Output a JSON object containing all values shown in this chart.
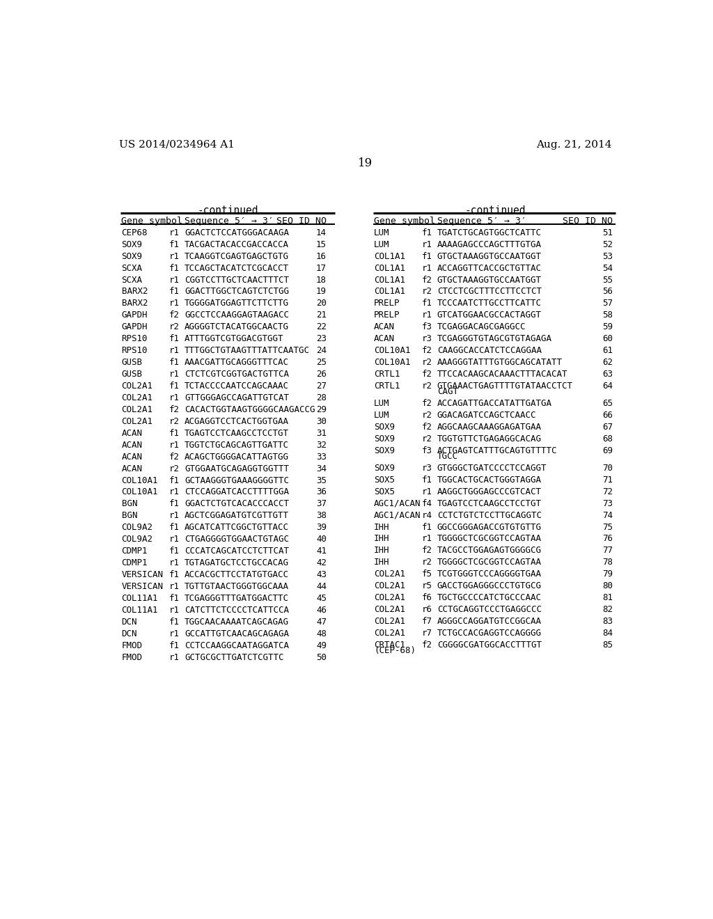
{
  "header_left": "US 2014/0234964 A1",
  "header_right": "Aug. 21, 2014",
  "page_number": "19",
  "continued_label": "-continued",
  "left_table": [
    [
      "CEP68",
      "r1",
      "GGACTCTCCATGGGACAAGA",
      "14"
    ],
    [
      "SOX9",
      "f1",
      "TACGACTACACCGACCACCA",
      "15"
    ],
    [
      "SOX9",
      "r1",
      "TCAAGGTCGAGTGAGCTGTG",
      "16"
    ],
    [
      "SCXA",
      "f1",
      "TCCAGCTACATCTCGCACCT",
      "17"
    ],
    [
      "SCXA",
      "r1",
      "CGGTCCTTGCTCAACTTTCT",
      "18"
    ],
    [
      "BARX2",
      "f1",
      "GGACTTGGCTCAGTCTCTGG",
      "19"
    ],
    [
      "BARX2",
      "r1",
      "TGGGGATGGAGTTCTTCTTG",
      "20"
    ],
    [
      "GAPDH",
      "f2",
      "GGCCTCCAAGGAGTAAGACC",
      "21"
    ],
    [
      "GAPDH",
      "r2",
      "AGGGGTCTACATGGCAACTG",
      "22"
    ],
    [
      "RPS10",
      "f1",
      "ATTTGGTCGTGGACGTGGT",
      "23"
    ],
    [
      "RPS10",
      "r1",
      "TTTGGCTGTAAGTTTATTCAATGC",
      "24"
    ],
    [
      "GUSB",
      "f1",
      "AAACGATTGCAGGGTTTCAC",
      "25"
    ],
    [
      "GUSB",
      "r1",
      "CTCTCGTCGGTGACTGTTCA",
      "26"
    ],
    [
      "COL2A1",
      "f1",
      "TCTACCCCAATCCAGCAAAC",
      "27"
    ],
    [
      "COL2A1",
      "r1",
      "GTTGGGAGCCAGATTGTCAT",
      "28"
    ],
    [
      "COL2A1",
      "f2",
      "CACACTGGTAAGTGGGGCAAGACCG",
      "29"
    ],
    [
      "COL2A1",
      "r2",
      "ACGAGGTCCTCACTGGTGAA",
      "30"
    ],
    [
      "ACAN",
      "f1",
      "TGAGTCCTCAAGCCTCCTGT",
      "31"
    ],
    [
      "ACAN",
      "r1",
      "TGGTCTGCAGCAGTTGATTC",
      "32"
    ],
    [
      "ACAN",
      "f2",
      "ACAGCTGGGGACATTAGTGG",
      "33"
    ],
    [
      "ACAN",
      "r2",
      "GTGGAATGCAGAGGTGGTTT",
      "34"
    ],
    [
      "COL10A1",
      "f1",
      "GCTAAGGGTGAAAGGGGTTC",
      "35"
    ],
    [
      "COL10A1",
      "r1",
      "CTCCAGGATCACCTTTTGGA",
      "36"
    ],
    [
      "BGN",
      "f1",
      "GGACTCTGTCACACCCACCT",
      "37"
    ],
    [
      "BGN",
      "r1",
      "AGCTCGGAGATGTCGTTGTT",
      "38"
    ],
    [
      "COL9A2",
      "f1",
      "AGCATCATTCGGCTGTTACC",
      "39"
    ],
    [
      "COL9A2",
      "r1",
      "CTGAGGGGTGGAACTGTAGC",
      "40"
    ],
    [
      "CDMP1",
      "f1",
      "CCCATCAGCATCCTCTTCAT",
      "41"
    ],
    [
      "CDMP1",
      "r1",
      "TGTAGATGCTCCTGCCACAG",
      "42"
    ],
    [
      "VERSICAN",
      "f1",
      "ACCACGCTTCCTATGTGACC",
      "43"
    ],
    [
      "VERSICAN",
      "r1",
      "TGTTGTAACTGGGTGGCAAA",
      "44"
    ],
    [
      "COL11A1",
      "f1",
      "TCGAGGGTTTGATGGACTTC",
      "45"
    ],
    [
      "COL11A1",
      "r1",
      "CATCTTCTCCCCTCATTCCA",
      "46"
    ],
    [
      "DCN",
      "f1",
      "TGGCAACAAAATCAGCAGAG",
      "47"
    ],
    [
      "DCN",
      "r1",
      "GCCATTGTCAACAGCAGAGA",
      "48"
    ],
    [
      "FMOD",
      "f1",
      "CCTCCAAGGCAATAGGATCA",
      "49"
    ],
    [
      "FMOD",
      "r1",
      "GCTGCGCTTGATCTCGTTC",
      "50"
    ]
  ],
  "right_table": [
    [
      "LUM",
      "f1",
      "TGATCTGCAGTGGCTCATTC",
      "51",
      false
    ],
    [
      "LUM",
      "r1",
      "AAAAGAGCCCAGCTTTGTGA",
      "52",
      false
    ],
    [
      "COL1A1",
      "f1",
      "GTGCTAAAGGTGCCAATGGT",
      "53",
      false
    ],
    [
      "COL1A1",
      "r1",
      "ACCAGGTTCACCGCTGTTAC",
      "54",
      false
    ],
    [
      "COL1A1",
      "f2",
      "GTGCTAAAGGTGCCAATGGT",
      "55",
      false
    ],
    [
      "COL1A1",
      "r2",
      "CTCCTCGCTTTCCTTCCTCT",
      "56",
      false
    ],
    [
      "PRELP",
      "f1",
      "TCCCAATCTTGCCTTCATTC",
      "57",
      false
    ],
    [
      "PRELP",
      "r1",
      "GTCATGGAACGCCACTAGGT",
      "58",
      false
    ],
    [
      "ACAN",
      "f3",
      "TCGAGGACAGCGAGGCC",
      "59",
      false
    ],
    [
      "ACAN",
      "r3",
      "TCGAGGGTGTAGCGTGTAGAGA",
      "60",
      false
    ],
    [
      "COL10A1",
      "f2",
      "CAAGGCACCATCTCCAGGAA",
      "61",
      false
    ],
    [
      "COL10A1",
      "r2",
      "AAAGGGTATTTGTGGCAGCATATT",
      "62",
      false
    ],
    [
      "CRTL1",
      "f2",
      "TTCCACAAGCACAAACTTTACACAT",
      "63",
      false
    ],
    [
      "CRTL1",
      "r2",
      "GTGAAACTGAGTTTTGTATAACCTCT\nCAGT",
      "64",
      true
    ],
    [
      "LUM",
      "f2",
      "ACCAGATTGACCATATTGATGA",
      "65",
      false
    ],
    [
      "LUM",
      "r2",
      "GGACAGATCCAGCTCAACC",
      "66",
      false
    ],
    [
      "SOX9",
      "f2",
      "AGGCAAGCAAAGGAGATGAA",
      "67",
      false
    ],
    [
      "SOX9",
      "r2",
      "TGGTGTTCTGAGAGGCACAG",
      "68",
      false
    ],
    [
      "SOX9",
      "f3",
      "ACTGAGTCATTTGCAGTGTTTTC\nTGCC",
      "69",
      true
    ],
    [
      "SOX9",
      "r3",
      "GTGGGCTGATCCCCTCCAGGT",
      "70",
      false
    ],
    [
      "SOX5",
      "f1",
      "TGGCACTGCACTGGGTAGGA",
      "71",
      false
    ],
    [
      "SOX5",
      "r1",
      "AAGGCTGGGAGCCCGTCACT",
      "72",
      false
    ],
    [
      "AGC1/ACAN",
      "f4",
      "TGAGTCCTCAAGCCTCCTGT",
      "73",
      false
    ],
    [
      "AGC1/ACAN",
      "r4",
      "CCTCTGTCTCCTTGCAGGTC",
      "74",
      false
    ],
    [
      "IHH",
      "f1",
      "GGCCGGGAGACCGTGTGTTG",
      "75",
      false
    ],
    [
      "IHH",
      "r1",
      "TGGGGCTCGCGGTCCAGTAA",
      "76",
      false
    ],
    [
      "IHH",
      "f2",
      "TACGCCTGGAGAGTGGGGCG",
      "77",
      false
    ],
    [
      "IHH",
      "r2",
      "TGGGGCTCGCGGTCCAGTAA",
      "78",
      false
    ],
    [
      "COL2A1",
      "f5",
      "TCGTGGGTCCCAGGGGTGAA",
      "79",
      false
    ],
    [
      "COL2A1",
      "r5",
      "GACCTGGAGGGCCCTGTGCG",
      "80",
      false
    ],
    [
      "COL2A1",
      "f6",
      "TGCTGCCCCATCTGCCCAAC",
      "81",
      false
    ],
    [
      "COL2A1",
      "r6",
      "CCTGCAGGTCCCTGAGGCCC",
      "82",
      false
    ],
    [
      "COL2A1",
      "f7",
      "AGGGCCAGGATGTCCGGCAA",
      "83",
      false
    ],
    [
      "COL2A1",
      "r7",
      "TCTGCCACGAGGTCCAGGGG",
      "84",
      false
    ],
    [
      "CRTAC1\n(CEP-68)",
      "f2",
      "CGGGGCGATGGCACCTTTGT",
      "85",
      false
    ]
  ]
}
